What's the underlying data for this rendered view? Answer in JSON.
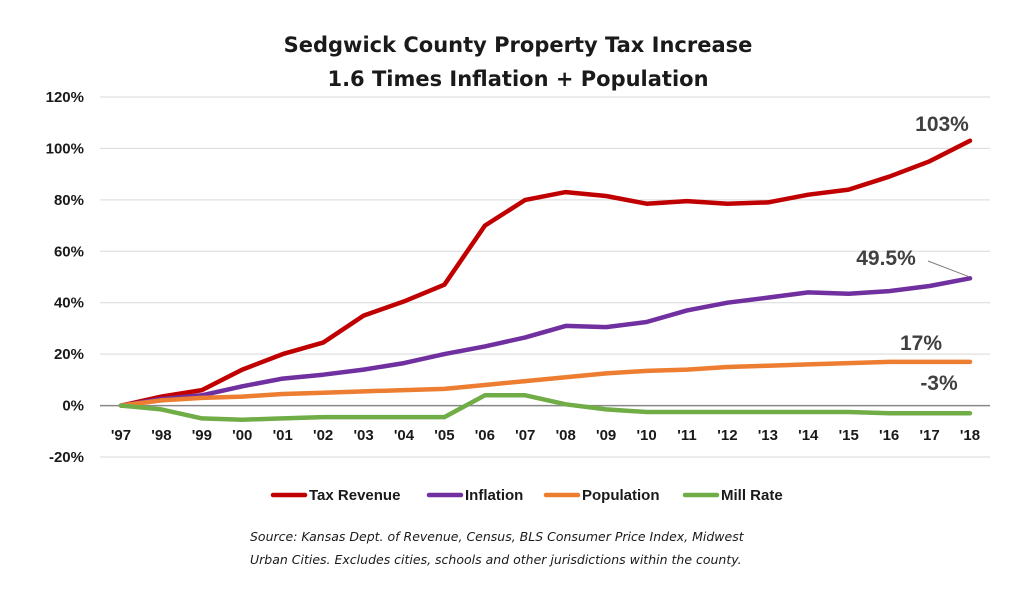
{
  "chart_data": {
    "type": "line",
    "title": "Sedgwick County Property Tax Increase",
    "subtitle": "1.6 Times Inflation + Population",
    "categories": [
      "'97",
      "'98",
      "'99",
      "'00",
      "'01",
      "'02",
      "'03",
      "'04",
      "'05",
      "'06",
      "'07",
      "'08",
      "'09",
      "'10",
      "'11",
      "'12",
      "'13",
      "'14",
      "'15",
      "'16",
      "'17",
      "'18"
    ],
    "ylim": [
      -20,
      120
    ],
    "ytick_labels": [
      "-20%",
      "0%",
      "20%",
      "40%",
      "60%",
      "80%",
      "100%",
      "120%"
    ],
    "ytick_values": [
      -20,
      0,
      20,
      40,
      60,
      80,
      100,
      120
    ],
    "grid": true,
    "legend_position": "bottom",
    "series": [
      {
        "name": "Tax Revenue",
        "color": "#c00000",
        "values": [
          0,
          3.5,
          6,
          14,
          20,
          24.5,
          35,
          40.5,
          47,
          70,
          80,
          83,
          81.5,
          78.5,
          79.5,
          78.5,
          79,
          82,
          84,
          89,
          95,
          103
        ]
      },
      {
        "name": "Inflation",
        "color": "#7030a0",
        "values": [
          0,
          2.5,
          4,
          7.5,
          10.5,
          12,
          14,
          16.5,
          20,
          23,
          26.5,
          31,
          30.5,
          32.5,
          37,
          40,
          42,
          44,
          43.5,
          44.5,
          46.5,
          49.5
        ]
      },
      {
        "name": "Population",
        "color": "#ed7d31",
        "values": [
          0,
          2,
          3,
          3.5,
          4.5,
          5,
          5.5,
          6,
          6.5,
          8,
          9.5,
          11,
          12.5,
          13.5,
          14,
          15,
          15.5,
          16,
          16.5,
          17,
          17,
          17
        ]
      },
      {
        "name": "Mill Rate",
        "color": "#70ad47",
        "values": [
          0,
          -1.5,
          -5,
          -5.5,
          -5,
          -4.5,
          -4.5,
          -4.5,
          -4.5,
          4,
          4,
          0.5,
          -1.5,
          -2.5,
          -2.5,
          -2.5,
          -2.5,
          -2.5,
          -2.5,
          -3,
          -3,
          -3
        ]
      }
    ],
    "annotations": [
      {
        "text": "103%",
        "x": "'18",
        "y": 103
      },
      {
        "text": "49.5%",
        "x": "'18",
        "y": 49.5
      },
      {
        "text": "17%",
        "x": "'18",
        "y": 17
      },
      {
        "text": "-3%",
        "x": "'18",
        "y": -3
      }
    ],
    "source_lines": [
      "Source: Kansas Dept. of Revenue, Census, BLS Consumer Price Index, Midwest",
      "Urban Cities.  Excludes cities, schools and other jurisdictions within the county."
    ]
  }
}
